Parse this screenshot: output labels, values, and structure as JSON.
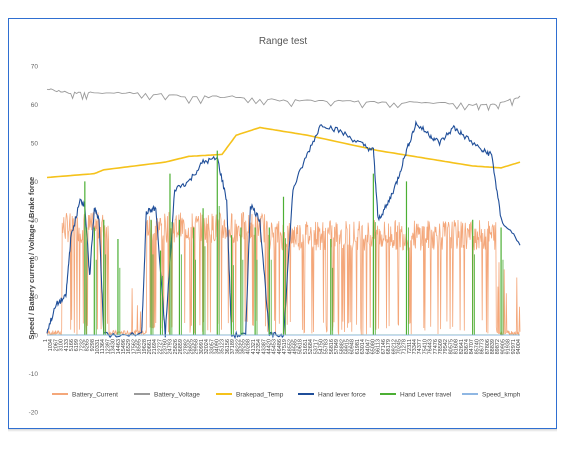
{
  "chart_data": {
    "type": "line",
    "title": "Range test",
    "ylabel": "Speed / Battery current / Voltage / Brake force",
    "xlabel": "",
    "ylim": [
      -20,
      70
    ],
    "yticks": [
      -20,
      -10,
      0,
      10,
      20,
      30,
      40,
      50,
      60,
      70
    ],
    "grid": false,
    "legend_position": "bottom",
    "series": [
      {
        "name": "Battery_Current",
        "color": "#f4a77a",
        "style": "noisy-high-low",
        "segments": [
          {
            "x0": 0.0,
            "x1": 0.03,
            "level": 0
          },
          {
            "x0": 0.03,
            "x1": 0.13,
            "level": 30
          },
          {
            "x0": 0.13,
            "x1": 0.21,
            "level": 0
          },
          {
            "x0": 0.21,
            "x1": 0.46,
            "level": 30
          },
          {
            "x0": 0.46,
            "x1": 0.95,
            "level": 28
          },
          {
            "x0": 0.95,
            "x1": 1.0,
            "level": 0
          }
        ]
      },
      {
        "name": "Battery_Voltage",
        "color": "#9a9a9a",
        "points": [
          [
            0,
            64
          ],
          [
            0.05,
            63
          ],
          [
            0.1,
            63
          ],
          [
            0.2,
            63
          ],
          [
            0.3,
            62
          ],
          [
            0.4,
            62
          ],
          [
            0.5,
            61
          ],
          [
            0.6,
            61
          ],
          [
            0.7,
            60.5
          ],
          [
            0.8,
            60.5
          ],
          [
            0.9,
            60
          ],
          [
            0.95,
            60
          ],
          [
            1,
            62
          ]
        ]
      },
      {
        "name": "Brakepad_Temp",
        "color": "#f5c21b",
        "points": [
          [
            0,
            41
          ],
          [
            0.1,
            42
          ],
          [
            0.12,
            43
          ],
          [
            0.25,
            45
          ],
          [
            0.3,
            46.5
          ],
          [
            0.37,
            47
          ],
          [
            0.4,
            52
          ],
          [
            0.45,
            54
          ],
          [
            0.55,
            52
          ],
          [
            0.7,
            48
          ],
          [
            0.8,
            46
          ],
          [
            0.9,
            44
          ],
          [
            0.96,
            43.5
          ],
          [
            1,
            45
          ]
        ]
      },
      {
        "name": "Hand lever force",
        "color": "#1f4e99",
        "points": [
          [
            0,
            1
          ],
          [
            0.02,
            8
          ],
          [
            0.04,
            10
          ],
          [
            0.05,
            25
          ],
          [
            0.07,
            35
          ],
          [
            0.08,
            34
          ],
          [
            0.09,
            15
          ],
          [
            0.1,
            33
          ],
          [
            0.11,
            30
          ],
          [
            0.12,
            0
          ],
          [
            0.2,
            0
          ],
          [
            0.21,
            32
          ],
          [
            0.23,
            33
          ],
          [
            0.25,
            0
          ],
          [
            0.27,
            38
          ],
          [
            0.3,
            40
          ],
          [
            0.33,
            45
          ],
          [
            0.36,
            46
          ],
          [
            0.38,
            35
          ],
          [
            0.39,
            0
          ],
          [
            0.42,
            0
          ],
          [
            0.43,
            34
          ],
          [
            0.45,
            30
          ],
          [
            0.47,
            0
          ],
          [
            0.5,
            0
          ],
          [
            0.52,
            38
          ],
          [
            0.55,
            47
          ],
          [
            0.58,
            55
          ],
          [
            0.62,
            53
          ],
          [
            0.66,
            50
          ],
          [
            0.69,
            48
          ],
          [
            0.7,
            30
          ],
          [
            0.72,
            34
          ],
          [
            0.74,
            40
          ],
          [
            0.76,
            48
          ],
          [
            0.78,
            55
          ],
          [
            0.81,
            52
          ],
          [
            0.83,
            50
          ],
          [
            0.86,
            54
          ],
          [
            0.88,
            52
          ],
          [
            0.92,
            48
          ],
          [
            0.94,
            47
          ],
          [
            0.96,
            30
          ],
          [
            1,
            24
          ]
        ]
      },
      {
        "name": "Hand Lever travel",
        "color": "#4caf34",
        "points": [
          [
            0,
            0
          ],
          [
            1,
            0
          ]
        ],
        "spikes": [
          [
            0.08,
            40
          ],
          [
            0.1,
            28
          ],
          [
            0.12,
            30
          ],
          [
            0.15,
            25
          ],
          [
            0.22,
            30
          ],
          [
            0.24,
            22
          ],
          [
            0.26,
            42
          ],
          [
            0.28,
            30
          ],
          [
            0.31,
            28
          ],
          [
            0.33,
            33
          ],
          [
            0.36,
            48
          ],
          [
            0.39,
            26
          ],
          [
            0.41,
            28
          ],
          [
            0.44,
            28
          ],
          [
            0.47,
            28
          ],
          [
            0.5,
            36
          ],
          [
            0.6,
            25
          ],
          [
            0.69,
            42
          ],
          [
            0.76,
            40
          ],
          [
            0.9,
            30
          ],
          [
            0.96,
            28
          ]
        ]
      },
      {
        "name": "Speed_kmph",
        "color": "#8fb7e3",
        "points": [
          [
            0,
            0
          ],
          [
            1,
            0
          ]
        ]
      }
    ]
  }
}
